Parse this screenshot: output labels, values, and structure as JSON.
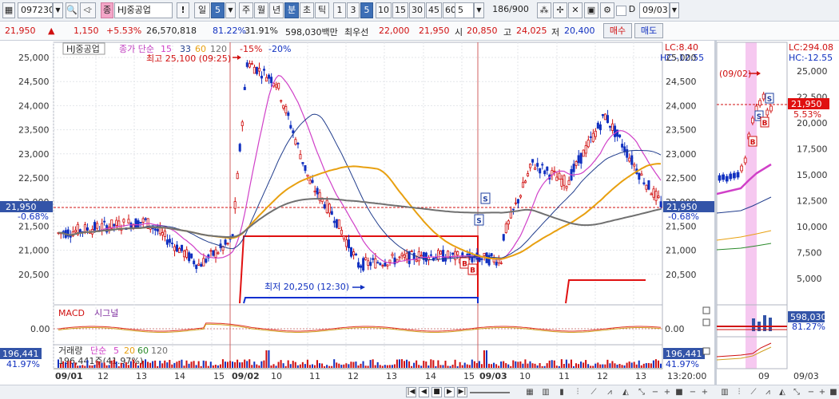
{
  "toolbar": {
    "code": "097230",
    "stock_name": "HJ중공업",
    "stock_badge": "종",
    "period_buttons": [
      "일",
      "주",
      "월",
      "년",
      "분",
      "초",
      "틱"
    ],
    "day_count": "5",
    "minute_buttons": [
      "1",
      "3",
      "5",
      "10",
      "15",
      "30",
      "45",
      "60"
    ],
    "minute_count": "5",
    "range": "186/900",
    "bang": "!",
    "check_label": "D",
    "date": "09/03"
  },
  "quote": {
    "price": "21,950",
    "arrow": "▲",
    "change": "1,150",
    "change_pct": "+5.53%",
    "volume": "26,570,818",
    "ratio1": "81.22%",
    "ratio2": "31.91%",
    "amount": "598,030백만",
    "ask_label": "최우선",
    "ask": "22,000",
    "bid": "21,950",
    "open_label": "시",
    "open": "20,850",
    "high_label": "고",
    "high": "24,025",
    "low_label": "저",
    "low": "20,400",
    "buy": "매수",
    "sell": "매도"
  },
  "main_chart": {
    "legend_name": "HJ중공업",
    "legend_ma": "종가 단순",
    "ma_periods": [
      "15",
      "33",
      "60",
      "120"
    ],
    "pct_marks": [
      "-15%",
      "-20%"
    ],
    "lc": "LC:8.40",
    "hc": "HC:-12.55",
    "high_note": "최고 25,100 (09:25)",
    "low_note": "최저 20,250 (12:30)",
    "y_ticks": [
      "25,000",
      "24,500",
      "24,000",
      "23,500",
      "23,000",
      "22,500",
      "22,000",
      "21,500",
      "21,000",
      "20,500"
    ],
    "cur_price": "21,950",
    "cur_pct": "-0.68%",
    "signals": [
      "S",
      "S",
      "B",
      "B"
    ]
  },
  "macd": {
    "label": "MACD",
    "signal_label": "시그널",
    "tick": "0.00"
  },
  "volume_pane": {
    "legend_name": "거래량",
    "legend_ma": "단순",
    "ma_periods": [
      "5",
      "20",
      "60",
      "120"
    ],
    "value_label": "196,441주(41.97%)",
    "box_value": "196,441",
    "box_pct": "41.97%"
  },
  "x_axis": {
    "labels": [
      "09/01",
      "12",
      "13",
      "14",
      "15",
      "09/02",
      "10",
      "11",
      "12",
      "13",
      "14",
      "15",
      "09/03",
      "10",
      "11",
      "12",
      "13"
    ],
    "time": "13:20:00"
  },
  "side_chart": {
    "lc": "LC:294.08",
    "hc": "HC:-12.55",
    "date_note": "(09/02)",
    "y_ticks": [
      "25,000",
      "22,500",
      "20,000",
      "17,500",
      "15,000",
      "12,500",
      "10,000",
      "7,500",
      "5,000"
    ],
    "cur_price": "21,950",
    "cur_pct": "5.53%",
    "amount": "598,030",
    "amount_pct": "81.27%",
    "signals": [
      "S",
      "S",
      "B",
      "B"
    ],
    "x_labels": [
      "09",
      "09/03"
    ]
  },
  "colors": {
    "up": "#d01010",
    "down": "#1030c0",
    "ma15": "#d040c8",
    "ma33": "#203c8c",
    "ma60": "#e8a010",
    "ma120": "#707070",
    "accent": "#3d6fb6"
  }
}
